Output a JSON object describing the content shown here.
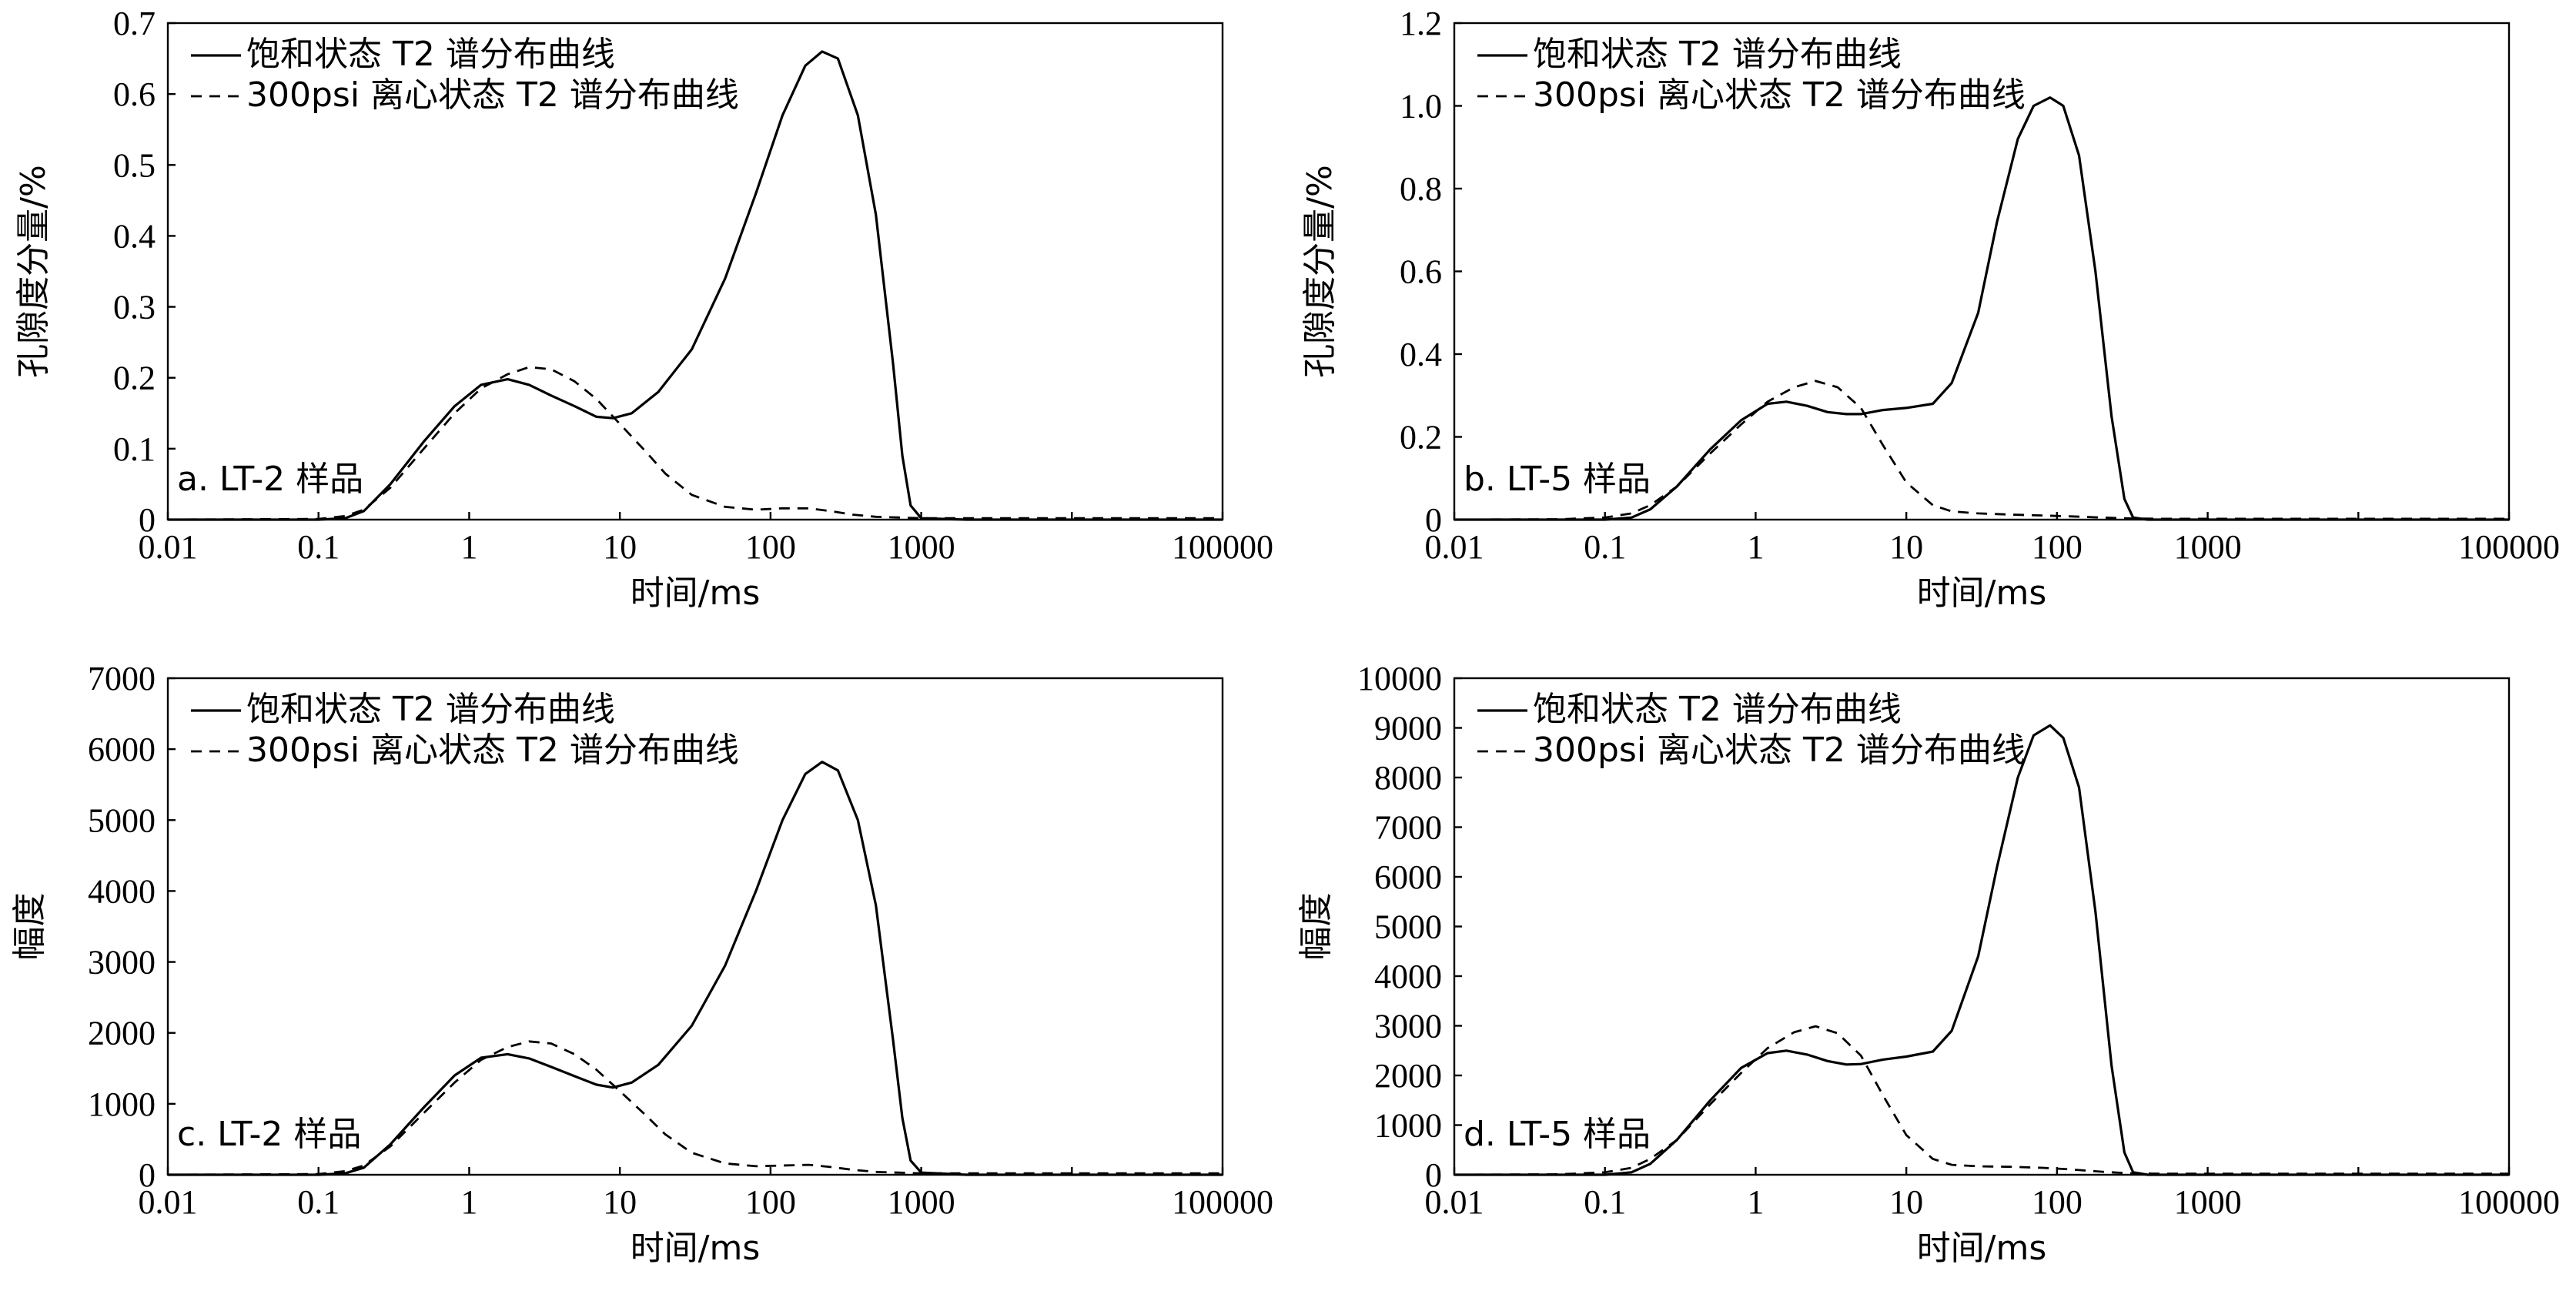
{
  "chart_data": [
    {
      "type": "line",
      "panel_label": "a. LT-2 样品",
      "xlabel": "时间/ms",
      "ylabel": "孔隙度分量/%",
      "xscale": "log",
      "xlim": [
        0.01,
        100000
      ],
      "ylim": [
        0,
        0.7
      ],
      "xticks": [
        "0.01",
        "0.1",
        "1",
        "10",
        "100",
        "1000",
        "100000"
      ],
      "yticks": [
        "0",
        "0.1",
        "0.2",
        "0.3",
        "0.4",
        "0.5",
        "0.6",
        "0.7"
      ],
      "legend_position": "top-left",
      "grid": false,
      "series": [
        {
          "name": "饱和状态 T2 谱分布曲线",
          "style": "solid",
          "x": [
            0.01,
            0.1,
            0.15,
            0.2,
            0.3,
            0.5,
            0.8,
            1.2,
            1.8,
            2.5,
            3.5,
            5,
            7,
            9,
            12,
            18,
            30,
            50,
            80,
            120,
            170,
            220,
            280,
            380,
            500,
            650,
            750,
            850,
            1000,
            2000,
            100000
          ],
          "y": [
            0,
            0,
            0.002,
            0.012,
            0.05,
            0.11,
            0.16,
            0.19,
            0.198,
            0.19,
            0.175,
            0.16,
            0.145,
            0.143,
            0.15,
            0.18,
            0.24,
            0.34,
            0.46,
            0.57,
            0.64,
            0.66,
            0.65,
            0.57,
            0.43,
            0.22,
            0.09,
            0.02,
            0.002,
            0,
            0
          ]
        },
        {
          "name": "300psi 离心状态 T2 谱分布曲线",
          "style": "dashed",
          "x": [
            0.01,
            0.1,
            0.15,
            0.2,
            0.3,
            0.5,
            0.8,
            1.2,
            1.8,
            2.5,
            3.5,
            5,
            7,
            10,
            15,
            20,
            30,
            50,
            80,
            120,
            180,
            250,
            350,
            500,
            700,
            1000,
            2000,
            100000
          ],
          "y": [
            0,
            0.001,
            0.005,
            0.014,
            0.045,
            0.1,
            0.15,
            0.185,
            0.205,
            0.215,
            0.212,
            0.195,
            0.17,
            0.135,
            0.095,
            0.065,
            0.035,
            0.018,
            0.014,
            0.016,
            0.016,
            0.012,
            0.007,
            0.004,
            0.003,
            0.002,
            0.002,
            0.002
          ]
        }
      ]
    },
    {
      "type": "line",
      "panel_label": "b. LT-5 样品",
      "xlabel": "时间/ms",
      "ylabel": "孔隙度分量/%",
      "xscale": "log",
      "xlim": [
        0.01,
        100000
      ],
      "ylim": [
        0,
        1.2
      ],
      "xticks": [
        "0.01",
        "0.1",
        "1",
        "10",
        "100",
        "1000",
        "100000"
      ],
      "yticks": [
        "0",
        "0.2",
        "0.4",
        "0.6",
        "0.8",
        "1.0",
        "1.2"
      ],
      "legend_position": "top-left",
      "grid": false,
      "series": [
        {
          "name": "饱和状态 T2 谱分布曲线",
          "style": "solid",
          "x": [
            0.01,
            0.1,
            0.15,
            0.2,
            0.3,
            0.5,
            0.8,
            1.2,
            1.6,
            2.2,
            3,
            4,
            5,
            7,
            10,
            15,
            20,
            30,
            40,
            55,
            70,
            90,
            110,
            140,
            180,
            230,
            280,
            320,
            400,
            100000
          ],
          "y": [
            0,
            0,
            0.005,
            0.025,
            0.08,
            0.17,
            0.24,
            0.28,
            0.285,
            0.275,
            0.26,
            0.255,
            0.255,
            0.265,
            0.27,
            0.28,
            0.33,
            0.5,
            0.72,
            0.92,
            1.0,
            1.02,
            1.0,
            0.88,
            0.6,
            0.25,
            0.05,
            0.005,
            0,
            0
          ]
        },
        {
          "name": "300psi 离心状态 T2 谱分布曲线",
          "style": "dashed",
          "x": [
            0.01,
            0.05,
            0.1,
            0.15,
            0.2,
            0.3,
            0.5,
            0.8,
            1.2,
            1.8,
            2.5,
            3.5,
            5,
            7,
            10,
            15,
            20,
            30,
            50,
            80,
            120,
            200,
            300,
            500,
            1000,
            100000
          ],
          "y": [
            0,
            0.001,
            0.005,
            0.015,
            0.035,
            0.08,
            0.16,
            0.23,
            0.285,
            0.32,
            0.335,
            0.32,
            0.27,
            0.18,
            0.09,
            0.035,
            0.02,
            0.015,
            0.012,
            0.01,
            0.008,
            0.005,
            0.003,
            0.002,
            0.002,
            0.002
          ]
        }
      ]
    },
    {
      "type": "line",
      "panel_label": "c. LT-2 样品",
      "xlabel": "时间/ms",
      "ylabel": "幅度",
      "xscale": "log",
      "xlim": [
        0.01,
        100000
      ],
      "ylim": [
        0,
        7000
      ],
      "xticks": [
        "0.01",
        "0.1",
        "1",
        "10",
        "100",
        "1000",
        "100000"
      ],
      "yticks": [
        "0",
        "1000",
        "2000",
        "3000",
        "4000",
        "5000",
        "6000",
        "7000"
      ],
      "legend_position": "top-left",
      "grid": false,
      "series": [
        {
          "name": "饱和状态 T2 谱分布曲线",
          "style": "solid",
          "x": [
            0.01,
            0.1,
            0.15,
            0.2,
            0.3,
            0.5,
            0.8,
            1.2,
            1.8,
            2.5,
            3.5,
            5,
            7,
            9,
            12,
            18,
            30,
            50,
            80,
            120,
            170,
            220,
            280,
            380,
            500,
            650,
            750,
            850,
            1000,
            2000,
            100000
          ],
          "y": [
            0,
            0,
            20,
            100,
            430,
            950,
            1400,
            1650,
            1700,
            1640,
            1520,
            1390,
            1270,
            1230,
            1300,
            1550,
            2100,
            2950,
            4000,
            5000,
            5650,
            5820,
            5700,
            5000,
            3800,
            1900,
            800,
            200,
            30,
            0,
            0
          ]
        },
        {
          "name": "300psi 离心状态 T2 谱分布曲线",
          "style": "dashed",
          "x": [
            0.01,
            0.1,
            0.15,
            0.2,
            0.3,
            0.5,
            0.8,
            1.2,
            1.8,
            2.5,
            3.5,
            5,
            7,
            10,
            15,
            20,
            30,
            50,
            80,
            120,
            180,
            250,
            350,
            500,
            700,
            1000,
            2000,
            100000
          ],
          "y": [
            0,
            10,
            50,
            130,
            400,
            870,
            1300,
            1620,
            1800,
            1880,
            1850,
            1700,
            1480,
            1180,
            830,
            570,
            310,
            160,
            120,
            130,
            140,
            110,
            70,
            40,
            30,
            20,
            20,
            20
          ]
        }
      ]
    },
    {
      "type": "line",
      "panel_label": "d. LT-5 样品",
      "xlabel": "时间/ms",
      "ylabel": "幅度",
      "xscale": "log",
      "xlim": [
        0.01,
        100000
      ],
      "ylim": [
        0,
        10000
      ],
      "xticks": [
        "0.01",
        "0.1",
        "1",
        "10",
        "100",
        "1000",
        "100000"
      ],
      "yticks": [
        "0",
        "1000",
        "2000",
        "3000",
        "4000",
        "5000",
        "6000",
        "7000",
        "8000",
        "9000",
        "10000"
      ],
      "legend_position": "top-left",
      "grid": false,
      "series": [
        {
          "name": "饱和状态 T2 谱分布曲线",
          "style": "solid",
          "x": [
            0.01,
            0.1,
            0.15,
            0.2,
            0.3,
            0.5,
            0.8,
            1.2,
            1.6,
            2.2,
            3,
            4,
            5,
            7,
            10,
            15,
            20,
            30,
            40,
            55,
            70,
            90,
            110,
            140,
            180,
            230,
            280,
            320,
            400,
            100000
          ],
          "y": [
            0,
            0,
            50,
            220,
            700,
            1500,
            2150,
            2450,
            2500,
            2420,
            2290,
            2220,
            2230,
            2320,
            2380,
            2480,
            2900,
            4400,
            6200,
            8000,
            8850,
            9050,
            8800,
            7800,
            5300,
            2200,
            450,
            50,
            0,
            0
          ]
        },
        {
          "name": "300psi 离心状态 T2 谱分布曲线",
          "style": "dashed",
          "x": [
            0.01,
            0.05,
            0.1,
            0.15,
            0.2,
            0.3,
            0.5,
            0.8,
            1.2,
            1.8,
            2.5,
            3.5,
            5,
            7,
            10,
            15,
            20,
            30,
            50,
            80,
            120,
            200,
            300,
            500,
            1000,
            100000
          ],
          "y": [
            0,
            10,
            50,
            140,
            320,
            700,
            1420,
            2050,
            2550,
            2870,
            2990,
            2850,
            2400,
            1600,
            800,
            320,
            200,
            170,
            160,
            140,
            110,
            60,
            30,
            20,
            20,
            20
          ]
        }
      ]
    }
  ]
}
